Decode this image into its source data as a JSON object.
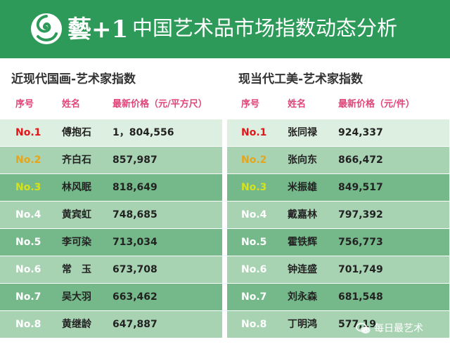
{
  "banner": {
    "logo_text": "藝+1",
    "title": "中国艺术品市场指数动态分析",
    "bg": "#2e9a5a"
  },
  "colors": {
    "rank1": "#e3161a",
    "rank2": "#e7a51a",
    "rank3": "#d6e21a",
    "rank_other": "#ffffff",
    "header_pink": "#e0457a"
  },
  "left_panel": {
    "title": "近现代国画-艺术家指数",
    "headers": {
      "rank": "序号",
      "name": "姓名",
      "price": "最新价格（元/平方尺）"
    },
    "rows": [
      {
        "rank": "No.1",
        "name": "傅抱石",
        "price": "1，804,556"
      },
      {
        "rank": "No.2",
        "name": "齐白石",
        "price": "857,987"
      },
      {
        "rank": "No.3",
        "name": "林风眠",
        "price": "818,649"
      },
      {
        "rank": "No.4",
        "name": "黄宾虹",
        "price": "748,685"
      },
      {
        "rank": "No.5",
        "name": "李可染",
        "price": "713,034"
      },
      {
        "rank": "No.6",
        "name": "常　玉",
        "price": "673,708"
      },
      {
        "rank": "No.7",
        "name": "吴大羽",
        "price": "663,462"
      },
      {
        "rank": "No.8",
        "name": "黄继龄",
        "price": "647,887"
      }
    ]
  },
  "right_panel": {
    "title": "现当代工美-艺术家指数",
    "headers": {
      "rank": "序号",
      "name": "姓名",
      "price": "最新价格（元/件）"
    },
    "rows": [
      {
        "rank": "No.1",
        "name": "张同禄",
        "price": "924,337"
      },
      {
        "rank": "No.2",
        "name": "张向东",
        "price": "866,472"
      },
      {
        "rank": "No.3",
        "name": "米振雄",
        "price": "849,517"
      },
      {
        "rank": "No.4",
        "name": "戴嘉林",
        "price": "797,392"
      },
      {
        "rank": "No.5",
        "name": "霍铁辉",
        "price": "756,773"
      },
      {
        "rank": "No.6",
        "name": "钟连盛",
        "price": "701,749"
      },
      {
        "rank": "No.7",
        "name": "刘永森",
        "price": "681,548"
      },
      {
        "rank": "No.8",
        "name": "丁明鸿",
        "price": "577,19"
      }
    ]
  },
  "watermark": {
    "text": "每日最艺术",
    "icon": "wechat-icon"
  }
}
